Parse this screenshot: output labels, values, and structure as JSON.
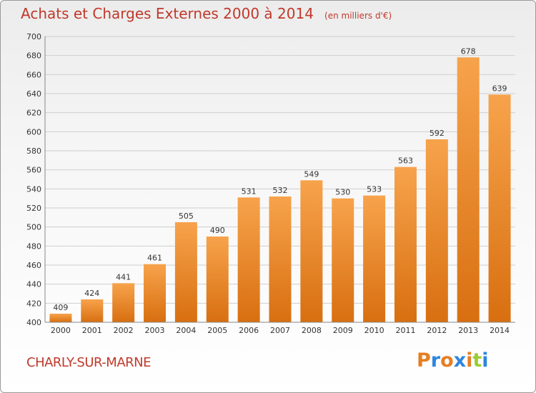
{
  "title": "Achats et Charges Externes 2000 à 2014",
  "unit": "(en milliers d'€)",
  "commune": "CHARLY-SUR-MARNE",
  "logo": {
    "letters": [
      "P",
      "r",
      "o",
      "x",
      "i",
      "t",
      "i"
    ],
    "colors": [
      "#e67e22",
      "#2e86de",
      "#e67e22",
      "#2e86de",
      "#e67e22",
      "#9acd32",
      "#2e86de"
    ]
  },
  "colors": {
    "title": "#c0392b",
    "bar_top": "#f7a34c",
    "bar_bottom": "#d86f10",
    "grid": "#cfcfcf"
  },
  "chart_data": {
    "type": "bar",
    "title": "Achats et Charges Externes 2000 à 2014",
    "xlabel": "",
    "ylabel": "",
    "ylim": [
      400,
      700
    ],
    "ytick_step": 20,
    "grid": true,
    "categories": [
      "2000",
      "2001",
      "2002",
      "2003",
      "2004",
      "2005",
      "2006",
      "2007",
      "2008",
      "2009",
      "2010",
      "2011",
      "2012",
      "2013",
      "2014"
    ],
    "values": [
      409,
      424,
      441,
      461,
      505,
      490,
      531,
      532,
      549,
      530,
      533,
      563,
      592,
      678,
      639
    ]
  }
}
